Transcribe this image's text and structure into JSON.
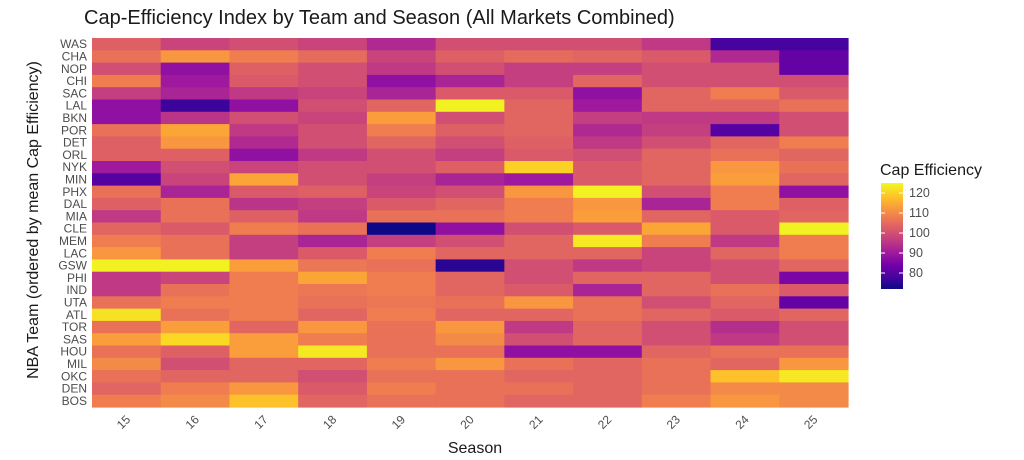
{
  "chart_data": {
    "type": "heatmap",
    "title": "Cap-Efficiency Index by Team and Season (All Markets Combined)",
    "xlabel": "Season",
    "ylabel": "NBA Team (ordered by mean Cap Efficiency)",
    "x": [
      "15",
      "16",
      "17",
      "18",
      "19",
      "20",
      "21",
      "22",
      "23",
      "24",
      "25"
    ],
    "y": [
      "WAS",
      "CHA",
      "NOP",
      "CHI",
      "SAC",
      "LAL",
      "BKN",
      "POR",
      "DET",
      "ORL",
      "NYK",
      "MIN",
      "PHX",
      "DAL",
      "MIA",
      "CLE",
      "MEM",
      "LAC",
      "GSW",
      "PHI",
      "IND",
      "UTA",
      "ATL",
      "TOR",
      "SAS",
      "HOU",
      "MIL",
      "OKC",
      "DEN",
      "BOS"
    ],
    "values": [
      [
        103,
        98,
        100,
        98,
        93,
        100,
        100,
        100,
        96,
        78,
        78
      ],
      [
        106,
        112,
        108,
        105,
        98,
        103,
        105,
        104,
        102,
        93,
        82
      ],
      [
        100,
        88,
        103,
        100,
        96,
        100,
        97,
        97,
        100,
        100,
        82
      ],
      [
        108,
        90,
        102,
        100,
        88,
        92,
        97,
        104,
        100,
        100,
        100
      ],
      [
        97,
        92,
        96,
        98,
        92,
        102,
        102,
        88,
        104,
        108,
        102
      ],
      [
        88,
        77,
        88,
        100,
        104,
        124,
        104,
        90,
        104,
        104,
        106
      ],
      [
        88,
        95,
        100,
        98,
        113,
        100,
        104,
        97,
        96,
        96,
        100
      ],
      [
        106,
        114,
        96,
        100,
        108,
        103,
        104,
        93,
        97,
        80,
        100
      ],
      [
        103,
        112,
        93,
        100,
        104,
        100,
        103,
        96,
        100,
        104,
        108
      ],
      [
        103,
        103,
        88,
        96,
        100,
        97,
        102,
        100,
        104,
        106,
        104
      ],
      [
        90,
        100,
        98,
        100,
        100,
        103,
        120,
        102,
        104,
        112,
        106
      ],
      [
        80,
        98,
        114,
        100,
        97,
        92,
        90,
        102,
        104,
        113,
        104
      ],
      [
        106,
        92,
        102,
        103,
        98,
        100,
        112,
        124,
        100,
        108,
        88
      ],
      [
        103,
        106,
        95,
        97,
        102,
        104,
        108,
        112,
        92,
        108,
        103
      ],
      [
        96,
        106,
        103,
        96,
        106,
        106,
        108,
        113,
        104,
        102,
        104
      ],
      [
        104,
        102,
        108,
        106,
        72,
        88,
        100,
        102,
        114,
        102,
        124
      ],
      [
        108,
        106,
        97,
        92,
        97,
        100,
        104,
        123,
        108,
        96,
        108
      ],
      [
        112,
        106,
        97,
        102,
        108,
        104,
        104,
        104,
        98,
        104,
        108
      ],
      [
        124,
        124,
        113,
        107,
        106,
        75,
        100,
        96,
        98,
        100,
        104
      ],
      [
        96,
        98,
        108,
        114,
        108,
        104,
        100,
        104,
        104,
        100,
        85
      ],
      [
        96,
        106,
        108,
        107,
        108,
        104,
        102,
        92,
        104,
        106,
        102
      ],
      [
        106,
        108,
        108,
        106,
        107,
        106,
        112,
        106,
        100,
        104,
        82
      ],
      [
        122,
        106,
        108,
        104,
        108,
        104,
        104,
        106,
        104,
        102,
        104
      ],
      [
        106,
        113,
        104,
        112,
        106,
        112,
        96,
        104,
        100,
        94,
        100
      ],
      [
        113,
        121,
        113,
        108,
        106,
        110,
        100,
        104,
        100,
        96,
        100
      ],
      [
        106,
        103,
        113,
        123,
        106,
        106,
        88,
        88,
        104,
        106,
        106
      ],
      [
        110,
        100,
        104,
        104,
        108,
        112,
        106,
        104,
        106,
        104,
        112
      ],
      [
        106,
        104,
        104,
        100,
        106,
        106,
        104,
        104,
        106,
        118,
        123
      ],
      [
        104,
        108,
        112,
        102,
        108,
        106,
        106,
        104,
        106,
        110,
        110
      ],
      [
        108,
        110,
        118,
        104,
        106,
        106,
        104,
        104,
        108,
        112,
        110
      ]
    ],
    "color_scale": {
      "name": "plasma",
      "min": 72,
      "max": 125,
      "stops": [
        "#0d0887",
        "#46039f",
        "#7201a8",
        "#9c179e",
        "#bd3786",
        "#d8576b",
        "#ed7953",
        "#fb9f3a",
        "#fdca26",
        "#f0f921"
      ]
    },
    "legend": {
      "title": "Cap Efficiency",
      "ticks": [
        "80",
        "90",
        "100",
        "110",
        "120"
      ],
      "placement": "right"
    },
    "grid": false
  }
}
